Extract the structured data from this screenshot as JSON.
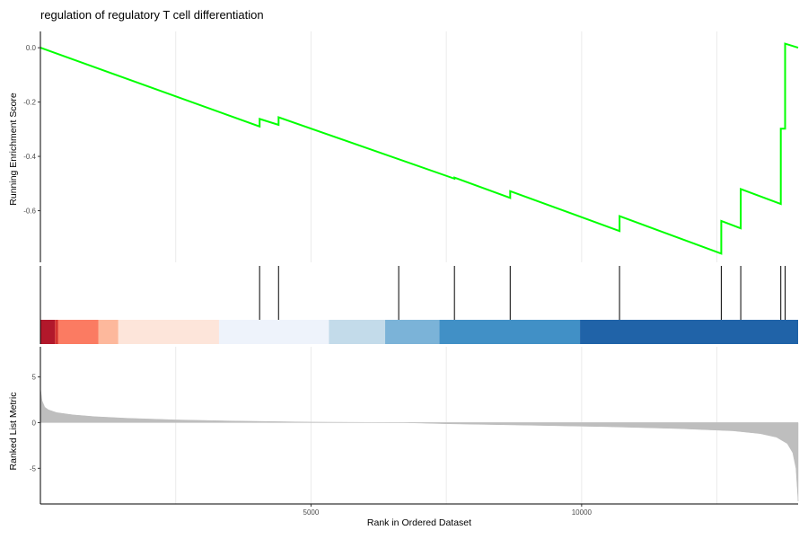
{
  "chart_data": {
    "type": "line",
    "title": "regulation of regulatory T cell differentiation",
    "xlabel": "Rank in Ordered Dataset",
    "x_ticks": [
      5000,
      10000
    ],
    "xlim": [
      0,
      14000
    ],
    "panels": {
      "running_score": {
        "ylabel": "Running Enrichment Score",
        "ylim": [
          -0.79,
          0.06
        ],
        "y_ticks": [
          0.0,
          -0.2,
          -0.4,
          -0.6
        ],
        "y_tick_labels": [
          "0.0",
          "-0.2",
          "-0.4",
          "-0.6"
        ],
        "line_color": "#00ff00",
        "points": [
          {
            "x": 0,
            "y": 0.0
          },
          {
            "x": 4050,
            "y": -0.29
          },
          {
            "x": 4050,
            "y": -0.262
          },
          {
            "x": 4400,
            "y": -0.284
          },
          {
            "x": 4400,
            "y": -0.256
          },
          {
            "x": 7650,
            "y": -0.482
          },
          {
            "x": 7650,
            "y": -0.478
          },
          {
            "x": 8680,
            "y": -0.553
          },
          {
            "x": 8680,
            "y": -0.528
          },
          {
            "x": 10700,
            "y": -0.675
          },
          {
            "x": 10700,
            "y": -0.62
          },
          {
            "x": 12580,
            "y": -0.758
          },
          {
            "x": 12580,
            "y": -0.638
          },
          {
            "x": 12940,
            "y": -0.665
          },
          {
            "x": 12940,
            "y": -0.52
          },
          {
            "x": 13680,
            "y": -0.575
          },
          {
            "x": 13680,
            "y": -0.298
          },
          {
            "x": 13760,
            "y": -0.298
          },
          {
            "x": 13760,
            "y": 0.015
          },
          {
            "x": 14000,
            "y": 0.0
          }
        ]
      },
      "hits": {
        "gene_set_positions": [
          4050,
          4400,
          6620,
          7650,
          8680,
          10700,
          12580,
          12940,
          13680,
          13760
        ]
      },
      "color_bar": [
        {
          "from": 0,
          "to": 270,
          "color": "#b2182b"
        },
        {
          "from": 270,
          "to": 330,
          "color": "#d6352f"
        },
        {
          "from": 330,
          "to": 1070,
          "color": "#fb7b62"
        },
        {
          "from": 1070,
          "to": 1440,
          "color": "#fdb89c"
        },
        {
          "from": 1440,
          "to": 3300,
          "color": "#fde5da"
        },
        {
          "from": 3300,
          "to": 5330,
          "color": "#eef3fb"
        },
        {
          "from": 5330,
          "to": 6370,
          "color": "#c3dbea"
        },
        {
          "from": 6370,
          "to": 7370,
          "color": "#7bb3d8"
        },
        {
          "from": 7370,
          "to": 9970,
          "color": "#4190c6"
        },
        {
          "from": 9970,
          "to": 14000,
          "color": "#2063a8"
        }
      ],
      "ranked_metric": {
        "ylabel": "Ranked List Metric",
        "ylim": [
          -8.9,
          8.3
        ],
        "y_ticks": [
          5,
          0,
          -5
        ],
        "y_tick_labels": [
          "5",
          "0",
          "-5"
        ],
        "fill_color": "#bebebe",
        "profile": [
          {
            "x": 0,
            "y": 3.8
          },
          {
            "x": 30,
            "y": 2.4
          },
          {
            "x": 80,
            "y": 1.7
          },
          {
            "x": 150,
            "y": 1.4
          },
          {
            "x": 300,
            "y": 1.1
          },
          {
            "x": 600,
            "y": 0.85
          },
          {
            "x": 1000,
            "y": 0.65
          },
          {
            "x": 1600,
            "y": 0.48
          },
          {
            "x": 2500,
            "y": 0.3
          },
          {
            "x": 3500,
            "y": 0.18
          },
          {
            "x": 5000,
            "y": 0.05
          },
          {
            "x": 6700,
            "y": 0.0
          },
          {
            "x": 7500,
            "y": -0.12
          },
          {
            "x": 9000,
            "y": -0.28
          },
          {
            "x": 10500,
            "y": -0.45
          },
          {
            "x": 11800,
            "y": -0.65
          },
          {
            "x": 12800,
            "y": -0.9
          },
          {
            "x": 13300,
            "y": -1.2
          },
          {
            "x": 13600,
            "y": -1.6
          },
          {
            "x": 13800,
            "y": -2.3
          },
          {
            "x": 13900,
            "y": -3.3
          },
          {
            "x": 13960,
            "y": -5.0
          },
          {
            "x": 14000,
            "y": -8.6
          }
        ]
      }
    }
  }
}
